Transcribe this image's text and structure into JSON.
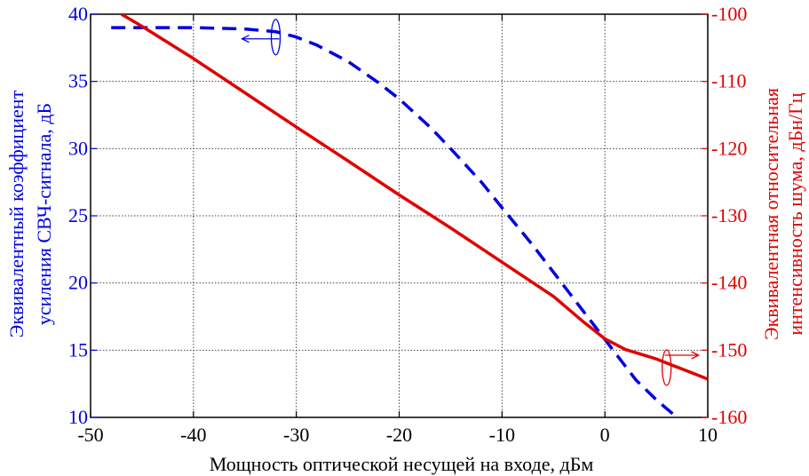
{
  "chart_data": {
    "type": "line",
    "xlabel": "Мощность оптической несущей на входе, дБм",
    "ylabel_left": [
      "Эквивалентный коэффициент",
      "усиления СВЧ-сигнала, дБ"
    ],
    "ylabel_right": [
      "Эквивалентная относительная",
      "интенсивность шума, дБн/Гц"
    ],
    "xlim": [
      -50,
      10
    ],
    "ylim_left": [
      10,
      40
    ],
    "ylim_right": [
      -160,
      -100
    ],
    "xticks": [
      "-50",
      "-40",
      "-30",
      "-20",
      "-10",
      "0",
      "10"
    ],
    "yticks_left": [
      "10",
      "15",
      "20",
      "25",
      "30",
      "35",
      "40"
    ],
    "yticks_right": [
      "-100",
      "-110",
      "-120",
      "-130",
      "-140",
      "-150",
      "-160"
    ],
    "grid": true,
    "colors": {
      "gain": "#0000e0",
      "noise": "#e00000"
    },
    "series": [
      {
        "axis": "left",
        "style": "dashed",
        "x": [
          -48,
          -45,
          -40,
          -35,
          -32,
          -30,
          -28,
          -25,
          -22,
          -20,
          -17,
          -15,
          -12,
          -10,
          -7,
          -5,
          -3,
          -1,
          1,
          3,
          5,
          7
        ],
        "y": [
          39.0,
          39.0,
          39.0,
          38.9,
          38.7,
          38.3,
          37.7,
          36.5,
          34.9,
          33.7,
          31.6,
          30.0,
          27.5,
          25.6,
          22.8,
          20.8,
          18.8,
          16.8,
          14.8,
          12.8,
          11.3,
          10.0
        ]
      },
      {
        "axis": "right",
        "style": "solid",
        "x": [
          -47,
          -45,
          -40,
          -35,
          -30,
          -25,
          -20,
          -15,
          -10,
          -5,
          -2,
          0,
          2,
          5,
          8,
          10
        ],
        "y": [
          -100.0,
          -101.8,
          -106.6,
          -111.7,
          -116.8,
          -121.8,
          -126.9,
          -131.8,
          -136.9,
          -142.0,
          -145.9,
          -148.3,
          -149.9,
          -151.3,
          -153.1,
          -154.3
        ]
      }
    ]
  }
}
